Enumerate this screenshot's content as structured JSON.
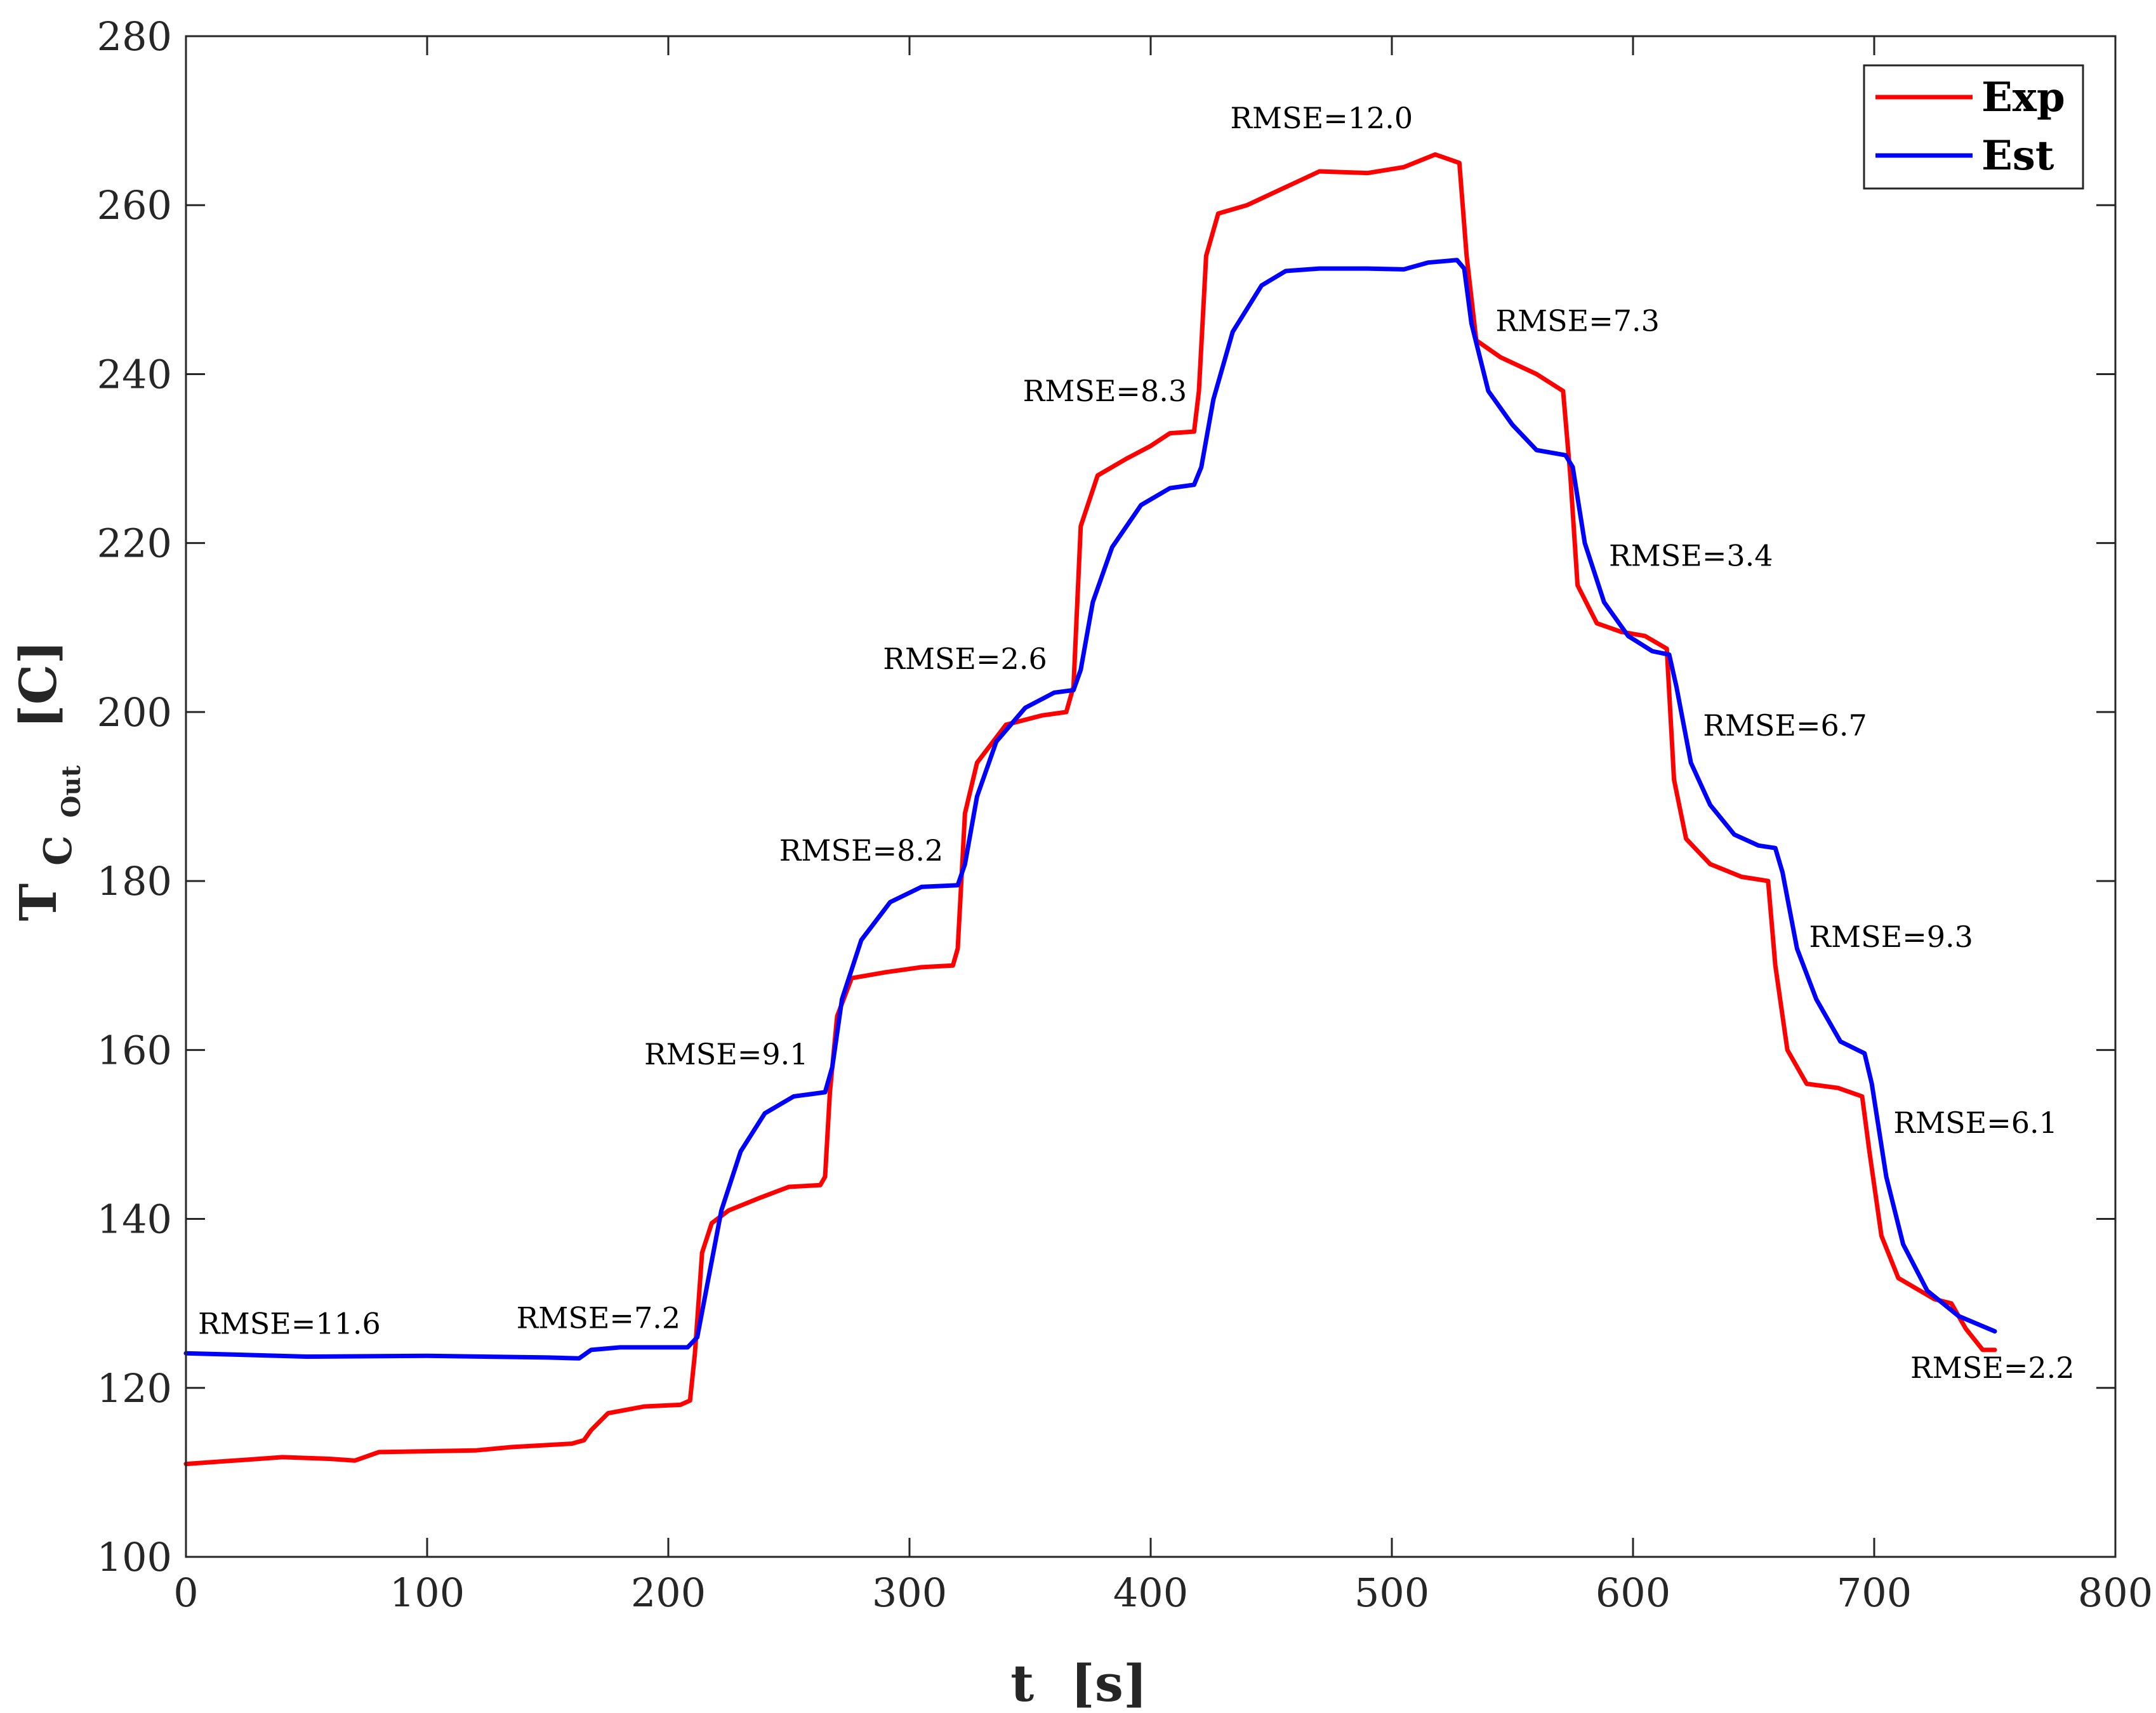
{
  "chart_data": {
    "type": "line",
    "xlabel": "t",
    "xlabel_unit": "[s]",
    "ylabel_main": "T",
    "ylabel_sub": "C",
    "ylabel_subsub": "Out",
    "ylabel_unit": "[C]",
    "xlim": [
      0,
      800
    ],
    "ylim": [
      100,
      280
    ],
    "xticks": [
      0,
      100,
      200,
      300,
      400,
      500,
      600,
      700,
      800
    ],
    "yticks": [
      100,
      120,
      140,
      160,
      180,
      200,
      220,
      240,
      260,
      280
    ],
    "grid": false,
    "legend_position": "top-right",
    "series": [
      {
        "name": "Exp",
        "color": "#ff0000",
        "points": [
          [
            0,
            111
          ],
          [
            20,
            111.4
          ],
          [
            40,
            111.8
          ],
          [
            60,
            111.6
          ],
          [
            70,
            111.4
          ],
          [
            80,
            112.4
          ],
          [
            120,
            112.6
          ],
          [
            135,
            113
          ],
          [
            160,
            113.4
          ],
          [
            165,
            113.8
          ],
          [
            168,
            115
          ],
          [
            175,
            117
          ],
          [
            190,
            117.8
          ],
          [
            205,
            118
          ],
          [
            209,
            118.5
          ],
          [
            211,
            124
          ],
          [
            214,
            136
          ],
          [
            218,
            139.5
          ],
          [
            225,
            141
          ],
          [
            238,
            142.5
          ],
          [
            250,
            143.8
          ],
          [
            263,
            144
          ],
          [
            265,
            145
          ],
          [
            267,
            155
          ],
          [
            270,
            164
          ],
          [
            276,
            168.5
          ],
          [
            290,
            169.2
          ],
          [
            305,
            169.8
          ],
          [
            318,
            170
          ],
          [
            320,
            172
          ],
          [
            323,
            188
          ],
          [
            328,
            194
          ],
          [
            340,
            198.5
          ],
          [
            355,
            199.6
          ],
          [
            365,
            200
          ],
          [
            368,
            203
          ],
          [
            371,
            222
          ],
          [
            378,
            228
          ],
          [
            390,
            230
          ],
          [
            400,
            231.5
          ],
          [
            408,
            233
          ],
          [
            418,
            233.2
          ],
          [
            420,
            238
          ],
          [
            423,
            254
          ],
          [
            428,
            259
          ],
          [
            440,
            260
          ],
          [
            455,
            262
          ],
          [
            470,
            264
          ],
          [
            490,
            263.8
          ],
          [
            505,
            264.5
          ],
          [
            518,
            266
          ],
          [
            528,
            265
          ],
          [
            531,
            254
          ],
          [
            535,
            244
          ],
          [
            545,
            242
          ],
          [
            560,
            240
          ],
          [
            571,
            238
          ],
          [
            574,
            228
          ],
          [
            577,
            215
          ],
          [
            585,
            210.5
          ],
          [
            595,
            209.5
          ],
          [
            605,
            209
          ],
          [
            614,
            207.5
          ],
          [
            617,
            192
          ],
          [
            622,
            185
          ],
          [
            632,
            182
          ],
          [
            645,
            180.5
          ],
          [
            656,
            180
          ],
          [
            659,
            170
          ],
          [
            664,
            160
          ],
          [
            672,
            156
          ],
          [
            685,
            155.5
          ],
          [
            695,
            154.5
          ],
          [
            698,
            148
          ],
          [
            703,
            138
          ],
          [
            710,
            133
          ],
          [
            725,
            130.5
          ],
          [
            732,
            130
          ],
          [
            738,
            127
          ],
          [
            745,
            124.5
          ],
          [
            750,
            124.5
          ]
        ]
      },
      {
        "name": "Est",
        "color": "#0000ff",
        "points": [
          [
            0,
            124.1
          ],
          [
            50,
            123.7
          ],
          [
            100,
            123.8
          ],
          [
            150,
            123.6
          ],
          [
            163,
            123.5
          ],
          [
            168,
            124.5
          ],
          [
            180,
            124.8
          ],
          [
            200,
            124.8
          ],
          [
            208,
            124.8
          ],
          [
            212,
            126
          ],
          [
            216,
            132
          ],
          [
            222,
            141
          ],
          [
            230,
            148
          ],
          [
            240,
            152.5
          ],
          [
            252,
            154.5
          ],
          [
            265,
            155
          ],
          [
            268,
            158
          ],
          [
            272,
            166
          ],
          [
            280,
            173
          ],
          [
            292,
            177.5
          ],
          [
            305,
            179.3
          ],
          [
            320,
            179.5
          ],
          [
            323,
            182
          ],
          [
            328,
            190
          ],
          [
            336,
            196.5
          ],
          [
            348,
            200.5
          ],
          [
            360,
            202.3
          ],
          [
            368,
            202.6
          ],
          [
            371,
            205
          ],
          [
            376,
            213
          ],
          [
            384,
            219.5
          ],
          [
            396,
            224.5
          ],
          [
            408,
            226.5
          ],
          [
            418,
            226.9
          ],
          [
            421,
            229
          ],
          [
            426,
            237
          ],
          [
            434,
            245
          ],
          [
            446,
            250.5
          ],
          [
            456,
            252.2
          ],
          [
            470,
            252.5
          ],
          [
            490,
            252.5
          ],
          [
            505,
            252.4
          ],
          [
            515,
            253.2
          ],
          [
            527,
            253.5
          ],
          [
            530,
            252.5
          ],
          [
            533,
            246
          ],
          [
            540,
            238
          ],
          [
            550,
            234
          ],
          [
            560,
            231
          ],
          [
            572,
            230.4
          ],
          [
            575,
            229
          ],
          [
            580,
            220
          ],
          [
            588,
            213
          ],
          [
            598,
            209
          ],
          [
            608,
            207.2
          ],
          [
            615,
            206.8
          ],
          [
            618,
            203
          ],
          [
            624,
            194
          ],
          [
            632,
            189
          ],
          [
            642,
            185.5
          ],
          [
            652,
            184.2
          ],
          [
            659,
            183.9
          ],
          [
            662,
            181
          ],
          [
            668,
            172
          ],
          [
            676,
            166
          ],
          [
            686,
            161
          ],
          [
            696,
            159.6
          ],
          [
            699,
            156
          ],
          [
            705,
            145
          ],
          [
            712,
            137
          ],
          [
            722,
            131.5
          ],
          [
            735,
            128.5
          ],
          [
            750,
            126.7
          ]
        ]
      }
    ],
    "annotations": [
      {
        "text": "RMSE=11.6",
        "x": 5,
        "y": 126.4
      },
      {
        "text": "RMSE=7.2",
        "x": 137,
        "y": 127.1
      },
      {
        "text": "RMSE=9.1",
        "x": 190,
        "y": 158.3
      },
      {
        "text": "RMSE=8.2",
        "x": 246,
        "y": 182.4
      },
      {
        "text": "RMSE=2.6",
        "x": 289,
        "y": 205.1
      },
      {
        "text": "RMSE=8.3",
        "x": 347,
        "y": 236.8
      },
      {
        "text": "RMSE=12.0",
        "x": 433,
        "y": 269.1
      },
      {
        "text": "RMSE=7.3",
        "x": 543,
        "y": 245.1
      },
      {
        "text": "RMSE=3.4",
        "x": 590,
        "y": 217.3
      },
      {
        "text": "RMSE=6.7",
        "x": 629,
        "y": 197.2
      },
      {
        "text": "RMSE=9.3",
        "x": 673,
        "y": 172.2
      },
      {
        "text": "RMSE=6.1",
        "x": 708,
        "y": 150.2
      },
      {
        "text": "RMSE=2.2",
        "x": 715,
        "y": 121.2
      }
    ]
  }
}
